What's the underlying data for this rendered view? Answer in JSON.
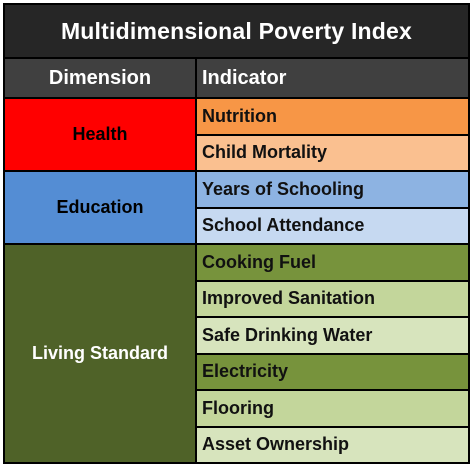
{
  "table": {
    "title": "Multidimensional Poverty Index",
    "headers": {
      "dimension": "Dimension",
      "indicator": "Indicator"
    },
    "dimensions": [
      {
        "name": "Health",
        "color": "#ff0000",
        "text_color": "#000000",
        "indicators": [
          {
            "label": "Nutrition",
            "color": "#f79646"
          },
          {
            "label": "Child Mortality",
            "color": "#fac090"
          }
        ]
      },
      {
        "name": "Education",
        "color": "#548dd4",
        "text_color": "#000000",
        "indicators": [
          {
            "label": "Years of Schooling",
            "color": "#8db3e2"
          },
          {
            "label": "School Attendance",
            "color": "#c6d9f1"
          }
        ]
      },
      {
        "name": "Living Standard",
        "color": "#4f6228",
        "text_color": "#ffffff",
        "indicators": [
          {
            "label": "Cooking Fuel",
            "color": "#77933c"
          },
          {
            "label": "Improved Sanitation",
            "color": "#c3d69b"
          },
          {
            "label": "Safe Drinking Water",
            "color": "#d7e4bd"
          },
          {
            "label": "Electricity",
            "color": "#77933c"
          },
          {
            "label": "Flooring",
            "color": "#c3d69b"
          },
          {
            "label": "Asset Ownership",
            "color": "#d7e4bd"
          }
        ]
      }
    ]
  }
}
